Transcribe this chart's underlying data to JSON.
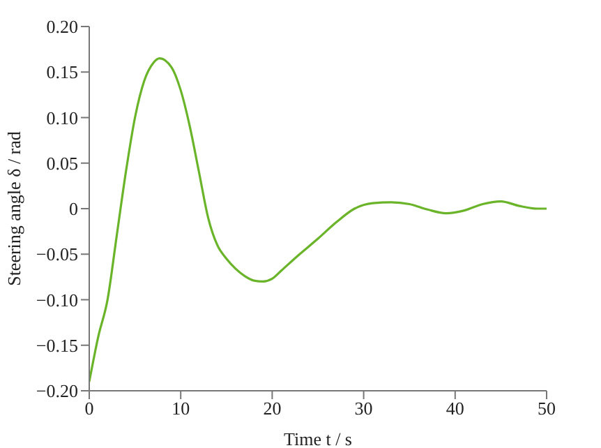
{
  "chart_data": {
    "type": "line",
    "xlabel": "Time t / s",
    "ylabel": "Steering angle δ / rad",
    "x": [
      0,
      1,
      2,
      3,
      4,
      5,
      6,
      7,
      7.7,
      9,
      10,
      11,
      12,
      13,
      14,
      15,
      16,
      17,
      18,
      19,
      20,
      21,
      23,
      25,
      27,
      29,
      31,
      33,
      35,
      37,
      39,
      41,
      43,
      45,
      47,
      49,
      50
    ],
    "series": [
      {
        "color": "#6ab42a",
        "values": [
          -0.19,
          -0.14,
          -0.1,
          -0.03,
          0.04,
          0.1,
          0.14,
          0.16,
          0.165,
          0.155,
          0.13,
          0.09,
          0.04,
          -0.01,
          -0.04,
          -0.055,
          -0.066,
          -0.074,
          -0.079,
          -0.08,
          -0.077,
          -0.068,
          -0.05,
          -0.033,
          -0.015,
          0.0,
          0.006,
          0.007,
          0.005,
          -0.001,
          -0.005,
          -0.002,
          0.005,
          0.008,
          0.003,
          0.0,
          0.0
        ]
      }
    ],
    "xlim": [
      0,
      50
    ],
    "xticks": [
      0,
      10,
      20,
      30,
      40,
      50
    ],
    "ylim": [
      -0.2,
      0.2
    ],
    "yticks": [
      {
        "value": -0.2,
        "label": "−0.20"
      },
      {
        "value": -0.15,
        "label": "−0.15"
      },
      {
        "value": -0.1,
        "label": "−0.10"
      },
      {
        "value": -0.05,
        "label": "−0.05"
      },
      {
        "value": 0,
        "label": "0"
      },
      {
        "value": 0.05,
        "label": "0.05"
      },
      {
        "value": 0.1,
        "label": "0.10"
      },
      {
        "value": 0.15,
        "label": "0.15"
      },
      {
        "value": 0.2,
        "label": "0.20"
      }
    ],
    "grid": false,
    "legend": false,
    "marker": "none",
    "line_style": "solid"
  }
}
